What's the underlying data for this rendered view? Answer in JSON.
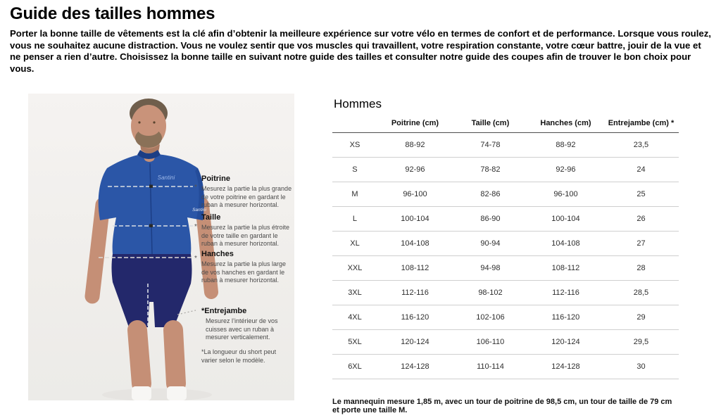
{
  "page": {
    "title": "Guide des tailles hommes",
    "intro": "Porter la bonne taille de vêtements est la clé afin d’obtenir la meilleure expérience sur votre vélo en termes de confort et de performance. Lorsque vous roulez, vous ne souhaitez aucune distraction. Vous ne voulez sentir que vos muscles qui travaillent, votre respiration constante, votre cœur battre, jouir de la vue et ne penser a rien d’autre. Choisissez la bonne taille en suivant notre guide des tailles et consulter notre guide des coupes afin de trouver le bon choix pour vous."
  },
  "figure": {
    "brand": "Santini",
    "annotations": [
      {
        "title": "Poitrine",
        "desc": "Mesurez la partie la plus grande de votre poitrine en gardant le ruban à mesurer horizontal."
      },
      {
        "title": "Taille",
        "desc": "Mesurez la partie la plus étroite de votre taille en gardant le ruban à mesurer horizontal."
      },
      {
        "title": "Hanches",
        "desc": "Mesurez la partie la plus large de vos hanches en gardant le ruban à mesurer horizontal."
      },
      {
        "title": "*Entrejambe",
        "desc": "Mesurez l’intérieur de vos cuisses avec un ruban à mesurer verticalement."
      }
    ],
    "note": "*La longueur du short peut varier selon le modèle."
  },
  "table": {
    "heading": "Hommes",
    "columns": [
      "",
      "Poitrine (cm)",
      "Taille (cm)",
      "Hanches (cm)",
      "Entrejambe (cm) *"
    ],
    "rows": [
      [
        "XS",
        "88-92",
        "74-78",
        "88-92",
        "23,5"
      ],
      [
        "S",
        "92-96",
        "78-82",
        "92-96",
        "24"
      ],
      [
        "M",
        "96-100",
        "82-86",
        "96-100",
        "25"
      ],
      [
        "L",
        "100-104",
        "86-90",
        "100-104",
        "26"
      ],
      [
        "XL",
        "104-108",
        "90-94",
        "104-108",
        "27"
      ],
      [
        "XXL",
        "108-112",
        "94-98",
        "108-112",
        "28"
      ],
      [
        "3XL",
        "112-116",
        "98-102",
        "112-116",
        "28,5"
      ],
      [
        "4XL",
        "116-120",
        "102-106",
        "116-120",
        "29"
      ],
      [
        "5XL",
        "120-124",
        "106-110",
        "120-124",
        "29,5"
      ],
      [
        "6XL",
        "124-128",
        "110-114",
        "124-128",
        "30"
      ]
    ],
    "footnote": "Le mannequin mesure 1,85 m, avec un tour de poitrine de 98,5 cm, un tour de taille de 79 cm et porte une taille M."
  },
  "colors": {
    "jersey_blue": "#2b56a7",
    "shorts_navy": "#23286b",
    "photo_background": "#f0eeeb",
    "skin": "#c58f76"
  }
}
